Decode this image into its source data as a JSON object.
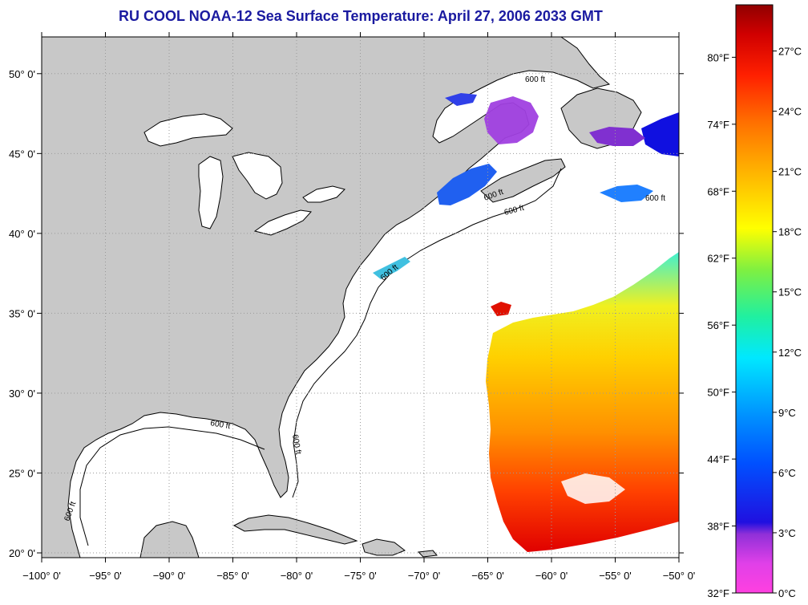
{
  "title": "RU COOL  NOAA-12  Sea Surface Temperature:  April 27, 2006 2033 GMT",
  "colors": {
    "title": "#1a1aa0",
    "land": "#c8c8c8",
    "ocean": "#ffffff",
    "grid": "#9a9a9a",
    "frame": "#000000"
  },
  "map": {
    "lon_range": [
      -100,
      -50
    ],
    "lat_range": [
      19.7,
      52.3
    ],
    "lon_ticks": [
      "−100° 0'",
      "−95° 0'",
      "−90° 0'",
      "−85° 0'",
      "−80° 0'",
      "−75° 0'",
      "−70° 0'",
      "−65° 0'",
      "−60° 0'",
      "−55° 0'",
      "−50° 0'"
    ],
    "lat_ticks": [
      "20° 0'",
      "25° 0'",
      "30° 0'",
      "35° 0'",
      "40° 0'",
      "45° 0'",
      "50° 0'"
    ],
    "isobath_labels": [
      "600 ft",
      "600 ft",
      "600 ft",
      "600 ft",
      "600 ft",
      "600 ft",
      "600 ft",
      "600 ft"
    ]
  },
  "colorbar": {
    "fahrenheit_labels": [
      "80°F",
      "74°F",
      "68°F",
      "62°F",
      "56°F",
      "50°F",
      "44°F",
      "38°F",
      "32°F"
    ],
    "celsius_labels": [
      "27°C",
      "24°C",
      "21°C",
      "18°C",
      "15°C",
      "12°C",
      "9°C",
      "6°C",
      "3°C",
      "0°C"
    ],
    "stops": [
      "#ff40e0",
      "#b040e0",
      "#7020d0",
      "#1010f0",
      "#0060ff",
      "#00c8ff",
      "#00f0d0",
      "#40f070",
      "#c0f030",
      "#ffff00",
      "#ffc000",
      "#ff8000",
      "#ff4000",
      "#ff0000",
      "#e00000",
      "#a00000"
    ]
  }
}
